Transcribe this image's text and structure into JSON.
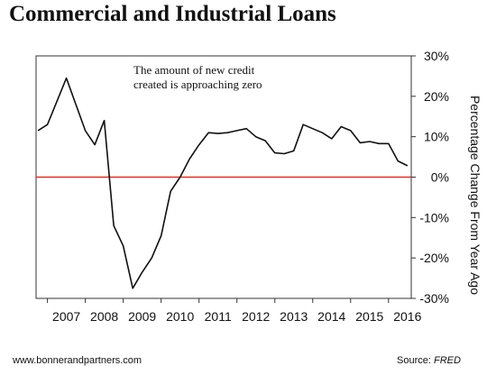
{
  "chart_data": {
    "type": "line",
    "title": "Commercial and Industrial Loans",
    "annotation": [
      "The amount of new credit",
      "created is approaching zero"
    ],
    "ylabel": "Percentage Change From Year Ago",
    "xlabel": "",
    "xlim": [
      2006.7,
      2016.6
    ],
    "ylim": [
      -30,
      30
    ],
    "x_ticks": [
      "2007",
      "2008",
      "2009",
      "2010",
      "2011",
      "2012",
      "2013",
      "2014",
      "2015",
      "2016"
    ],
    "y_ticks": [
      {
        "value": 30,
        "label": "30%"
      },
      {
        "value": 20,
        "label": "20%"
      },
      {
        "value": 10,
        "label": "10%"
      },
      {
        "value": 0,
        "label": "0%"
      },
      {
        "value": -10,
        "label": "-10%"
      },
      {
        "value": -20,
        "label": "-20%"
      },
      {
        "value": -30,
        "label": "-30%"
      }
    ],
    "grid": false,
    "reference_line": {
      "y": 0,
      "color": "#e03020"
    },
    "series": [
      {
        "name": "",
        "color": "#111111",
        "x": [
          2006.75,
          2007.0,
          2007.5,
          2008.0,
          2008.25,
          2008.5,
          2008.75,
          2009.0,
          2009.25,
          2009.5,
          2009.75,
          2010.0,
          2010.25,
          2010.5,
          2010.75,
          2011.0,
          2011.25,
          2011.5,
          2011.75,
          2012.0,
          2012.25,
          2012.5,
          2012.75,
          2013.0,
          2013.25,
          2013.5,
          2013.75,
          2014.0,
          2014.25,
          2014.5,
          2014.75,
          2015.0,
          2015.25,
          2015.5,
          2015.75,
          2016.0,
          2016.25,
          2016.5
        ],
        "values": [
          11.5,
          13.0,
          24.5,
          11.5,
          8.0,
          14.0,
          -12.0,
          -17.0,
          -27.5,
          -23.5,
          -20.0,
          -14.5,
          -3.5,
          0.0,
          4.5,
          8.0,
          11.0,
          10.8,
          11.0,
          11.5,
          12.0,
          10.0,
          9.0,
          6.0,
          5.8,
          6.5,
          13.0,
          12.0,
          11.0,
          9.5,
          12.5,
          11.5,
          8.5,
          8.8,
          8.3,
          8.3,
          4.0,
          2.8
        ]
      }
    ]
  },
  "footer": {
    "website": "www.bonnerandpartners.com",
    "source_prefix": "Source: ",
    "source_name": "FRED"
  }
}
